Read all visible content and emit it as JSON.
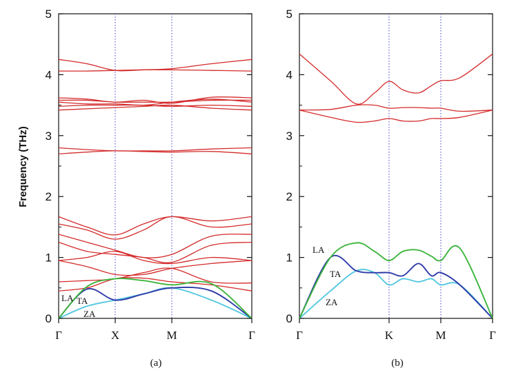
{
  "chart_data": [
    {
      "panel": "(a)",
      "type": "line",
      "ylabel": "Frequency (THz)",
      "ylim": [
        0,
        5
      ],
      "yticks": [
        "0",
        "1",
        "2",
        "3",
        "4",
        "5"
      ],
      "kpath": [
        "Γ",
        "X",
        "M",
        "Γ"
      ],
      "kpath_positions": [
        0,
        1,
        2,
        3.414
      ],
      "grid": false,
      "colors": {
        "optical": "#d42a2a",
        "LA": "#3db53d",
        "TA": "#2e3aa8",
        "ZA": "#55c8e0",
        "kline": "#5b5bd6"
      },
      "acoustic_labels": [
        "LA",
        "TA",
        "ZA"
      ],
      "series": [
        {
          "color": "#55c8e0",
          "acoustic": "ZA",
          "x": [
            0,
            0.5,
            1,
            1.5,
            2,
            2.7,
            3.414
          ],
          "y": [
            0,
            0.2,
            0.3,
            0.4,
            0.5,
            0.3,
            0
          ]
        },
        {
          "color": "#2e3aa8",
          "acoustic": "TA",
          "x": [
            0,
            0.5,
            1,
            1.5,
            2,
            2.7,
            3.414
          ],
          "y": [
            0,
            0.48,
            0.3,
            0.4,
            0.5,
            0.45,
            0
          ]
        },
        {
          "color": "#3db53d",
          "acoustic": "LA",
          "x": [
            0,
            0.5,
            1,
            1.5,
            2,
            2.7,
            3.414
          ],
          "y": [
            0,
            0.52,
            0.65,
            0.62,
            0.55,
            0.57,
            0
          ]
        },
        {
          "color": "#d42a2a",
          "x": [
            0,
            0.5,
            1,
            1.5,
            2,
            2.7,
            3.414
          ],
          "y": [
            0.45,
            0.5,
            0.65,
            0.66,
            0.6,
            0.55,
            0.45
          ]
        },
        {
          "color": "#d42a2a",
          "x": [
            0,
            0.5,
            1,
            1.5,
            2,
            2.7,
            3.414
          ],
          "y": [
            0.6,
            0.62,
            0.65,
            0.75,
            0.82,
            0.6,
            0.58
          ]
        },
        {
          "color": "#d42a2a",
          "x": [
            0,
            0.5,
            1,
            1.5,
            2,
            2.7,
            3.414
          ],
          "y": [
            0.95,
            0.85,
            0.72,
            0.72,
            0.82,
            0.9,
            0.95
          ]
        },
        {
          "color": "#d42a2a",
          "x": [
            0,
            0.5,
            1,
            1.5,
            2,
            2.7,
            3.414
          ],
          "y": [
            0.95,
            1.0,
            1.1,
            0.95,
            0.9,
            1.0,
            0.95
          ]
        },
        {
          "color": "#d42a2a",
          "x": [
            0,
            0.5,
            1,
            1.5,
            2,
            2.7,
            3.414
          ],
          "y": [
            1.25,
            1.1,
            1.05,
            1.0,
            0.92,
            1.2,
            1.25
          ]
        },
        {
          "color": "#d42a2a",
          "x": [
            0,
            0.5,
            1,
            1.5,
            2,
            2.7,
            3.414
          ],
          "y": [
            1.38,
            1.25,
            1.12,
            1.0,
            1.05,
            1.35,
            1.38
          ]
        },
        {
          "color": "#d42a2a",
          "x": [
            0,
            0.5,
            1,
            1.5,
            2,
            2.7,
            3.414
          ],
          "y": [
            1.67,
            1.5,
            1.37,
            1.55,
            1.67,
            1.6,
            1.67
          ]
        },
        {
          "color": "#d42a2a",
          "x": [
            0,
            0.5,
            1,
            1.5,
            2,
            2.7,
            3.414
          ],
          "y": [
            1.55,
            1.45,
            1.3,
            1.45,
            1.67,
            1.5,
            1.55
          ]
        },
        {
          "color": "#d42a2a",
          "x": [
            0,
            0.5,
            1,
            1.5,
            2,
            2.7,
            3.414
          ],
          "y": [
            2.7,
            2.73,
            2.75,
            2.74,
            2.73,
            2.74,
            2.7
          ]
        },
        {
          "color": "#d42a2a",
          "x": [
            0,
            0.5,
            1,
            1.5,
            2,
            2.7,
            3.414
          ],
          "y": [
            2.8,
            2.77,
            2.75,
            2.75,
            2.75,
            2.78,
            2.8
          ]
        },
        {
          "color": "#d42a2a",
          "x": [
            0,
            0.5,
            1,
            1.5,
            2,
            2.7,
            3.414
          ],
          "y": [
            3.42,
            3.44,
            3.46,
            3.48,
            3.5,
            3.45,
            3.42
          ]
        },
        {
          "color": "#d42a2a",
          "x": [
            0,
            0.5,
            1,
            1.5,
            2,
            2.7,
            3.414
          ],
          "y": [
            3.48,
            3.5,
            3.5,
            3.5,
            3.48,
            3.5,
            3.48
          ]
        },
        {
          "color": "#d42a2a",
          "x": [
            0,
            0.5,
            1,
            1.5,
            2,
            2.7,
            3.414
          ],
          "y": [
            3.55,
            3.52,
            3.52,
            3.5,
            3.55,
            3.6,
            3.55
          ]
        },
        {
          "color": "#d42a2a",
          "x": [
            0,
            0.5,
            1,
            1.5,
            2,
            2.7,
            3.414
          ],
          "y": [
            3.58,
            3.58,
            3.55,
            3.55,
            3.55,
            3.58,
            3.58
          ]
        },
        {
          "color": "#d42a2a",
          "x": [
            0,
            0.5,
            1,
            1.5,
            2,
            2.7,
            3.414
          ],
          "y": [
            3.62,
            3.6,
            3.55,
            3.58,
            3.53,
            3.63,
            3.62
          ]
        },
        {
          "color": "#d42a2a",
          "x": [
            0,
            0.5,
            1,
            1.5,
            2,
            2.7,
            3.414
          ],
          "y": [
            4.06,
            4.06,
            4.07,
            4.08,
            4.08,
            4.07,
            4.06
          ]
        },
        {
          "color": "#d42a2a",
          "x": [
            0,
            0.5,
            1,
            1.5,
            2,
            2.7,
            3.414
          ],
          "y": [
            4.25,
            4.18,
            4.07,
            4.08,
            4.1,
            4.18,
            4.25
          ]
        }
      ]
    },
    {
      "panel": "(b)",
      "type": "line",
      "ylim": [
        0,
        5
      ],
      "yticks": [
        "0",
        "1",
        "2",
        "3",
        "4",
        "5"
      ],
      "kpath": [
        "Γ",
        "K",
        "M",
        "Γ"
      ],
      "kpath_positions": [
        0,
        1.732,
        2.732,
        3.732
      ],
      "grid": false,
      "colors": {
        "optical": "#d42a2a",
        "LA": "#3db53d",
        "TA": "#2e3aa8",
        "ZA": "#55c8e0",
        "kline": "#5b5bd6"
      },
      "acoustic_labels": [
        "LA",
        "TA",
        "ZA"
      ],
      "series": [
        {
          "color": "#55c8e0",
          "acoustic": "ZA",
          "x": [
            0,
            0.6,
            1.1,
            1.45,
            1.732,
            2.0,
            2.3,
            2.55,
            2.732,
            3.1,
            3.732
          ],
          "y": [
            0,
            0.45,
            0.78,
            0.75,
            0.55,
            0.65,
            0.6,
            0.65,
            0.55,
            0.55,
            0
          ]
        },
        {
          "color": "#2e3aa8",
          "acoustic": "TA",
          "x": [
            0,
            0.6,
            1.1,
            1.45,
            1.732,
            2.0,
            2.3,
            2.55,
            2.732,
            3.1,
            3.732
          ],
          "y": [
            0,
            1.0,
            0.78,
            0.75,
            0.75,
            0.7,
            0.9,
            0.7,
            0.75,
            0.55,
            0
          ]
        },
        {
          "color": "#3db53d",
          "acoustic": "LA",
          "x": [
            0,
            0.6,
            1.1,
            1.45,
            1.732,
            2.0,
            2.3,
            2.55,
            2.732,
            3.1,
            3.732
          ],
          "y": [
            0,
            1.0,
            1.24,
            1.1,
            0.95,
            1.1,
            1.12,
            1.02,
            0.95,
            1.15,
            0
          ]
        },
        {
          "color": "#d42a2a",
          "x": [
            0,
            0.6,
            1.1,
            1.45,
            1.732,
            2.0,
            2.3,
            2.55,
            2.732,
            3.1,
            3.732
          ],
          "y": [
            3.42,
            3.3,
            3.22,
            3.24,
            3.28,
            3.24,
            3.24,
            3.28,
            3.28,
            3.3,
            3.42
          ]
        },
        {
          "color": "#d42a2a",
          "x": [
            0,
            0.6,
            1.1,
            1.45,
            1.732,
            2.0,
            2.3,
            2.55,
            2.732,
            3.1,
            3.732
          ],
          "y": [
            3.42,
            3.43,
            3.5,
            3.5,
            3.45,
            3.46,
            3.46,
            3.45,
            3.45,
            3.4,
            3.42
          ]
        },
        {
          "color": "#d42a2a",
          "x": [
            0,
            0.6,
            1.1,
            1.45,
            1.732,
            2.0,
            2.3,
            2.55,
            2.732,
            3.1,
            3.732
          ],
          "y": [
            4.34,
            3.9,
            3.52,
            3.7,
            3.89,
            3.75,
            3.7,
            3.82,
            3.9,
            3.95,
            4.34
          ]
        }
      ]
    }
  ],
  "captions": [
    "(a)",
    "(b)"
  ]
}
